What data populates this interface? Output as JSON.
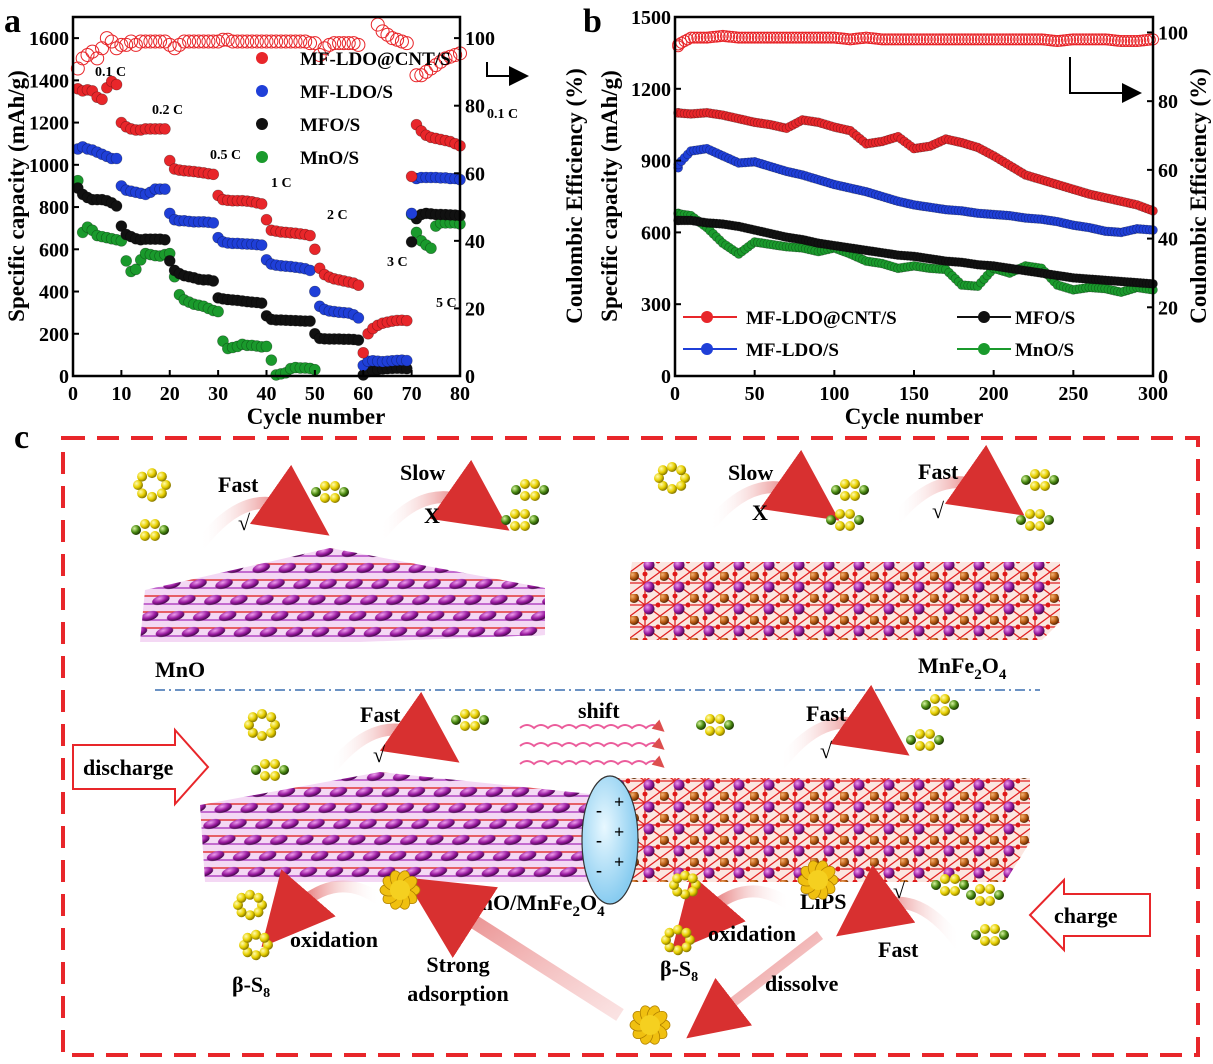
{
  "panel_labels": {
    "a": "a",
    "b": "b",
    "c": "c"
  },
  "chart_data": [
    {
      "type": "scatter",
      "panel": "a",
      "xlabel": "Cycle number",
      "ylabel": "Specific capacity (mAh/g)",
      "y2label": "Coulombic Efficiency (%)",
      "xlim": [
        0,
        80
      ],
      "ylim": [
        0,
        1700
      ],
      "y2lim": [
        0,
        106.25
      ],
      "xticks": [
        0,
        10,
        20,
        30,
        40,
        50,
        60,
        70,
        80
      ],
      "yticks": [
        0,
        200,
        400,
        600,
        800,
        1000,
        1200,
        1400,
        1600
      ],
      "y2ticks": [
        0,
        20,
        40,
        60,
        80,
        100
      ],
      "grid": false,
      "legend_position": "top-center",
      "rate_labels": [
        "0.1 C",
        "0.2 C",
        "0.5 C",
        "1 C",
        "2 C",
        "3 C",
        "5 C",
        "0.1 C"
      ],
      "series": [
        {
          "name": "MF-LDO@CNT/S",
          "color": "#e8262a",
          "values": [
            1360,
            1350,
            1355,
            1350,
            1320,
            1310,
            1365,
            1395,
            1380,
            1200,
            1180,
            1170,
            1165,
            1165,
            1170,
            1170,
            1170,
            1170,
            1170,
            1020,
            980,
            975,
            972,
            970,
            968,
            965,
            962,
            958,
            955,
            855,
            835,
            832,
            830,
            830,
            830,
            828,
            825,
            820,
            815,
            740,
            690,
            686,
            682,
            680,
            678,
            676,
            673,
            670,
            665,
            600,
            510,
            480,
            468,
            460,
            455,
            450,
            445,
            440,
            430,
            110,
            200,
            225,
            240,
            250,
            255,
            260,
            263,
            264,
            262,
            945,
            1190,
            1160,
            1140,
            1130,
            1125,
            1120,
            1115,
            1110,
            1100,
            1090
          ]
        },
        {
          "name": "MF-LDO/S",
          "color": "#1f3fd8",
          "values": [
            1075,
            1085,
            1075,
            1070,
            1060,
            1050,
            1040,
            1030,
            1030,
            900,
            880,
            875,
            870,
            865,
            860,
            870,
            885,
            885,
            885,
            770,
            740,
            735,
            735,
            732,
            730,
            730,
            730,
            728,
            725,
            655,
            635,
            630,
            628,
            628,
            626,
            625,
            624,
            622,
            620,
            550,
            530,
            525,
            522,
            520,
            518,
            515,
            512,
            508,
            500,
            400,
            330,
            315,
            308,
            305,
            302,
            300,
            298,
            290,
            275,
            50,
            70,
            72,
            70,
            68,
            70,
            72,
            74,
            75,
            73,
            770,
            935,
            940,
            940,
            940,
            940,
            938,
            938,
            935,
            935,
            930
          ]
        },
        {
          "name": "MFO/S",
          "color": "#111111",
          "values": [
            890,
            860,
            845,
            835,
            835,
            835,
            830,
            820,
            805,
            710,
            670,
            660,
            650,
            645,
            648,
            648,
            648,
            648,
            645,
            545,
            500,
            485,
            475,
            470,
            465,
            458,
            455,
            455,
            450,
            370,
            365,
            362,
            360,
            358,
            355,
            352,
            350,
            348,
            345,
            285,
            268,
            265,
            265,
            264,
            263,
            262,
            261,
            260,
            260,
            200,
            178,
            176,
            175,
            175,
            175,
            174,
            174,
            173,
            170,
            5,
            20,
            25,
            30,
            33,
            35,
            36,
            37,
            36,
            35,
            635,
            745,
            765,
            770,
            768,
            765,
            765,
            764,
            763,
            762,
            760
          ]
        },
        {
          "name": "MnO/S",
          "color": "#1a9a2c",
          "values": [
            925,
            680,
            705,
            690,
            665,
            660,
            655,
            650,
            645,
            640,
            545,
            495,
            505,
            550,
            580,
            575,
            570,
            568,
            575,
            580,
            470,
            385,
            360,
            350,
            340,
            335,
            330,
            320,
            310,
            305,
            165,
            130,
            135,
            140,
            150,
            145,
            145,
            142,
            138,
            140,
            75,
            5,
            10,
            15,
            35,
            40,
            38,
            38,
            36,
            30,
            null,
            null,
            null,
            null,
            null,
            null,
            null,
            null,
            null,
            null,
            null,
            null,
            null,
            null,
            null,
            null,
            null,
            null,
            null,
            765,
            680,
            640,
            620,
            605,
            710,
            725,
            725,
            725,
            725,
            720
          ]
        }
      ],
      "coulombic_efficiency": {
        "series": "MF-LDO@CNT/S",
        "color": "#e8262a",
        "values": [
          91,
          94,
          95,
          96,
          94,
          97,
          100,
          99,
          97,
          98,
          98,
          99,
          98,
          99,
          99,
          99,
          99,
          99,
          99,
          98,
          97,
          98,
          99,
          99,
          99,
          99,
          99,
          99,
          99,
          99,
          99.5,
          99.5,
          99,
          99,
          99,
          99,
          99,
          99,
          99,
          99,
          99,
          99,
          99,
          99,
          99,
          99,
          99,
          99,
          98.5,
          98.5,
          95,
          97,
          98,
          98.5,
          98.5,
          98.5,
          98.5,
          98.5,
          98,
          null,
          null,
          null,
          104,
          102,
          101,
          100,
          99.5,
          99,
          98.5,
          null,
          89,
          89,
          90,
          91,
          92,
          93,
          94,
          94.5,
          95,
          95.5
        ]
      }
    },
    {
      "type": "scatter",
      "panel": "b",
      "xlabel": "Cycle number",
      "ylabel": "Specific capacity (mAh/g)",
      "y2label": "Coulombic Efficiency (%)",
      "xlim": [
        0,
        300
      ],
      "ylim": [
        0,
        1500
      ],
      "y2lim": [
        0,
        104.5
      ],
      "xticks": [
        0,
        50,
        100,
        150,
        200,
        250,
        300
      ],
      "yticks": [
        0,
        300,
        600,
        900,
        1200,
        1500
      ],
      "y2ticks": [
        0,
        20,
        40,
        60,
        80,
        100
      ],
      "grid": false,
      "legend_position": "bottom",
      "x": [
        0,
        10,
        20,
        30,
        40,
        50,
        60,
        70,
        80,
        90,
        100,
        110,
        120,
        130,
        140,
        150,
        160,
        170,
        180,
        190,
        200,
        210,
        220,
        230,
        240,
        250,
        260,
        270,
        280,
        290,
        300
      ],
      "series": [
        {
          "name": "MF-LDO@CNT/S",
          "color": "#e8262a",
          "values": [
            1100,
            1095,
            1100,
            1090,
            1075,
            1060,
            1050,
            1035,
            1070,
            1060,
            1040,
            1025,
            970,
            980,
            1000,
            950,
            960,
            990,
            975,
            955,
            920,
            880,
            840,
            820,
            800,
            780,
            760,
            745,
            730,
            715,
            690
          ]
        },
        {
          "name": "MF-LDO/S",
          "color": "#1f3fd8",
          "values": [
            870,
            940,
            950,
            920,
            890,
            895,
            875,
            855,
            840,
            820,
            800,
            785,
            770,
            750,
            730,
            715,
            705,
            695,
            690,
            680,
            675,
            670,
            660,
            655,
            645,
            630,
            620,
            605,
            600,
            615,
            610
          ]
        },
        {
          "name": "MFO/S",
          "color": "#111111",
          "values": [
            650,
            650,
            640,
            635,
            625,
            610,
            595,
            580,
            570,
            555,
            545,
            535,
            525,
            515,
            505,
            500,
            490,
            480,
            475,
            465,
            460,
            450,
            440,
            430,
            420,
            410,
            405,
            400,
            395,
            390,
            385
          ]
        },
        {
          "name": "MnO/S",
          "color": "#1a9a2c",
          "values": [
            680,
            670,
            620,
            555,
            510,
            560,
            550,
            540,
            535,
            520,
            535,
            510,
            480,
            470,
            450,
            460,
            450,
            445,
            380,
            375,
            450,
            430,
            460,
            450,
            380,
            360,
            370,
            365,
            350,
            370,
            360
          ]
        }
      ],
      "coulombic_efficiency": {
        "series": "MF-LDO@CNT/S",
        "color": "#e8262a",
        "values": [
          96,
          98.5,
          98.5,
          99,
          98.5,
          98.5,
          98.5,
          98.5,
          98.5,
          98.5,
          98.5,
          98,
          98.5,
          98,
          98,
          98,
          98,
          98,
          98,
          98,
          98,
          98,
          98,
          98,
          97.5,
          98,
          98,
          98,
          97.5,
          97.5,
          98
        ]
      }
    }
  ],
  "diagram": {
    "materials": {
      "mno": "MnO",
      "mnfe2o4": [
        "MnFe",
        "2",
        "O",
        "4"
      ],
      "heterostructure": [
        "MnO/MnFe",
        "2",
        "O",
        "4"
      ]
    },
    "top_left": {
      "fast": "Fast",
      "check": "√",
      "slow": "Slow",
      "cross": "X"
    },
    "top_right": {
      "slow": "Slow",
      "cross": "X",
      "fast": "Fast",
      "check": "√"
    },
    "bottom": {
      "fast_left": "Fast",
      "check_left": "√",
      "shift": "shift",
      "fast_right": "Fast",
      "check_right": "√",
      "discharge": "discharge",
      "charge": "charge",
      "lips": "LiPS",
      "oxidation_left": "oxidation",
      "oxidation_right": "oxidation",
      "beta_s8_left": [
        "β-S",
        "8"
      ],
      "beta_s8_right": [
        "β-S",
        "8"
      ],
      "strong_adsorption": [
        "Strong",
        "adsorption"
      ],
      "dissolve": "dissolve",
      "fast_charge": "Fast",
      "check_charge": "√",
      "plus": "+",
      "minus": "-"
    },
    "colors": {
      "fast": "#1aa84f",
      "slow": "#e8262a",
      "arrow_label": "#1f3fd8",
      "frame": "#e8262a",
      "divider": "#3a6fb0"
    }
  }
}
